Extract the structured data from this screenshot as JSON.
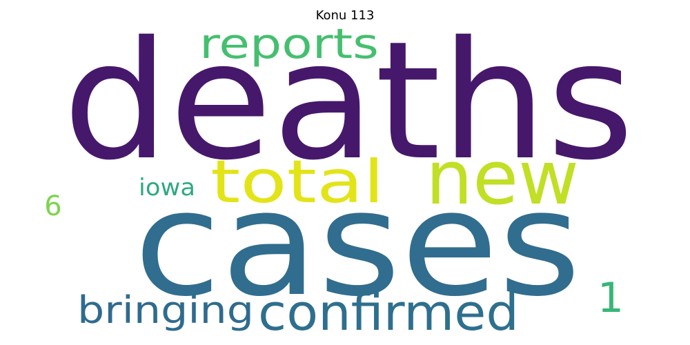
{
  "title": "Konu 113",
  "words": [
    {
      "text": "deaths",
      "color": "#46186b"
    },
    {
      "text": "cases",
      "color": "#316d8e"
    },
    {
      "text": "new",
      "color": "#c1df24"
    },
    {
      "text": "total",
      "color": "#e2e418"
    },
    {
      "text": "reports",
      "color": "#45bf6f"
    },
    {
      "text": "confirmed",
      "color": "#2e6f8e"
    },
    {
      "text": "bringing",
      "color": "#2f6b8e"
    },
    {
      "text": "iowa",
      "color": "#2ea881"
    },
    {
      "text": "1",
      "color": "#37b677"
    },
    {
      "text": "6",
      "color": "#7ed34f"
    }
  ]
}
